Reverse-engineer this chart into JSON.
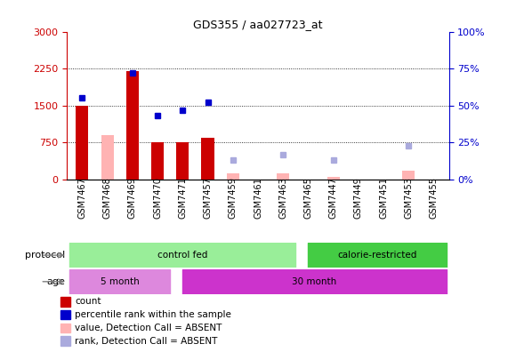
{
  "title": "GDS355 / aa027723_at",
  "samples": [
    "GSM7467",
    "GSM7468",
    "GSM7469",
    "GSM7470",
    "GSM7471",
    "GSM7457",
    "GSM7459",
    "GSM7461",
    "GSM7463",
    "GSM7465",
    "GSM7447",
    "GSM7449",
    "GSM7451",
    "GSM7453",
    "GSM7455"
  ],
  "count_values": [
    1500,
    null,
    2200,
    750,
    750,
    850,
    null,
    null,
    null,
    null,
    null,
    null,
    null,
    null,
    null
  ],
  "count_absent": [
    null,
    900,
    null,
    null,
    null,
    null,
    120,
    null,
    120,
    null,
    60,
    null,
    null,
    180,
    null
  ],
  "rank_values": [
    55,
    null,
    72,
    43,
    47,
    52,
    null,
    null,
    null,
    null,
    null,
    null,
    null,
    null,
    null
  ],
  "rank_absent": [
    null,
    null,
    null,
    null,
    null,
    null,
    13,
    null,
    17,
    null,
    13,
    null,
    null,
    23,
    null
  ],
  "ylim_left": [
    0,
    3000
  ],
  "ylim_right": [
    0,
    100
  ],
  "yticks_left": [
    0,
    750,
    1500,
    2250,
    3000
  ],
  "yticks_right": [
    0,
    25,
    50,
    75,
    100
  ],
  "color_count": "#cc0000",
  "color_rank": "#0000cc",
  "color_count_absent": "#ffb3b3",
  "color_rank_absent": "#aaaadd",
  "color_proto_cf": "#99ee99",
  "color_proto_cr": "#44cc44",
  "color_age_5": "#dd88dd",
  "color_age_30": "#cc33cc",
  "legend_items": [
    {
      "label": "count",
      "color": "#cc0000"
    },
    {
      "label": "percentile rank within the sample",
      "color": "#0000cc"
    },
    {
      "label": "value, Detection Call = ABSENT",
      "color": "#ffb3b3"
    },
    {
      "label": "rank, Detection Call = ABSENT",
      "color": "#aaaadd"
    }
  ]
}
